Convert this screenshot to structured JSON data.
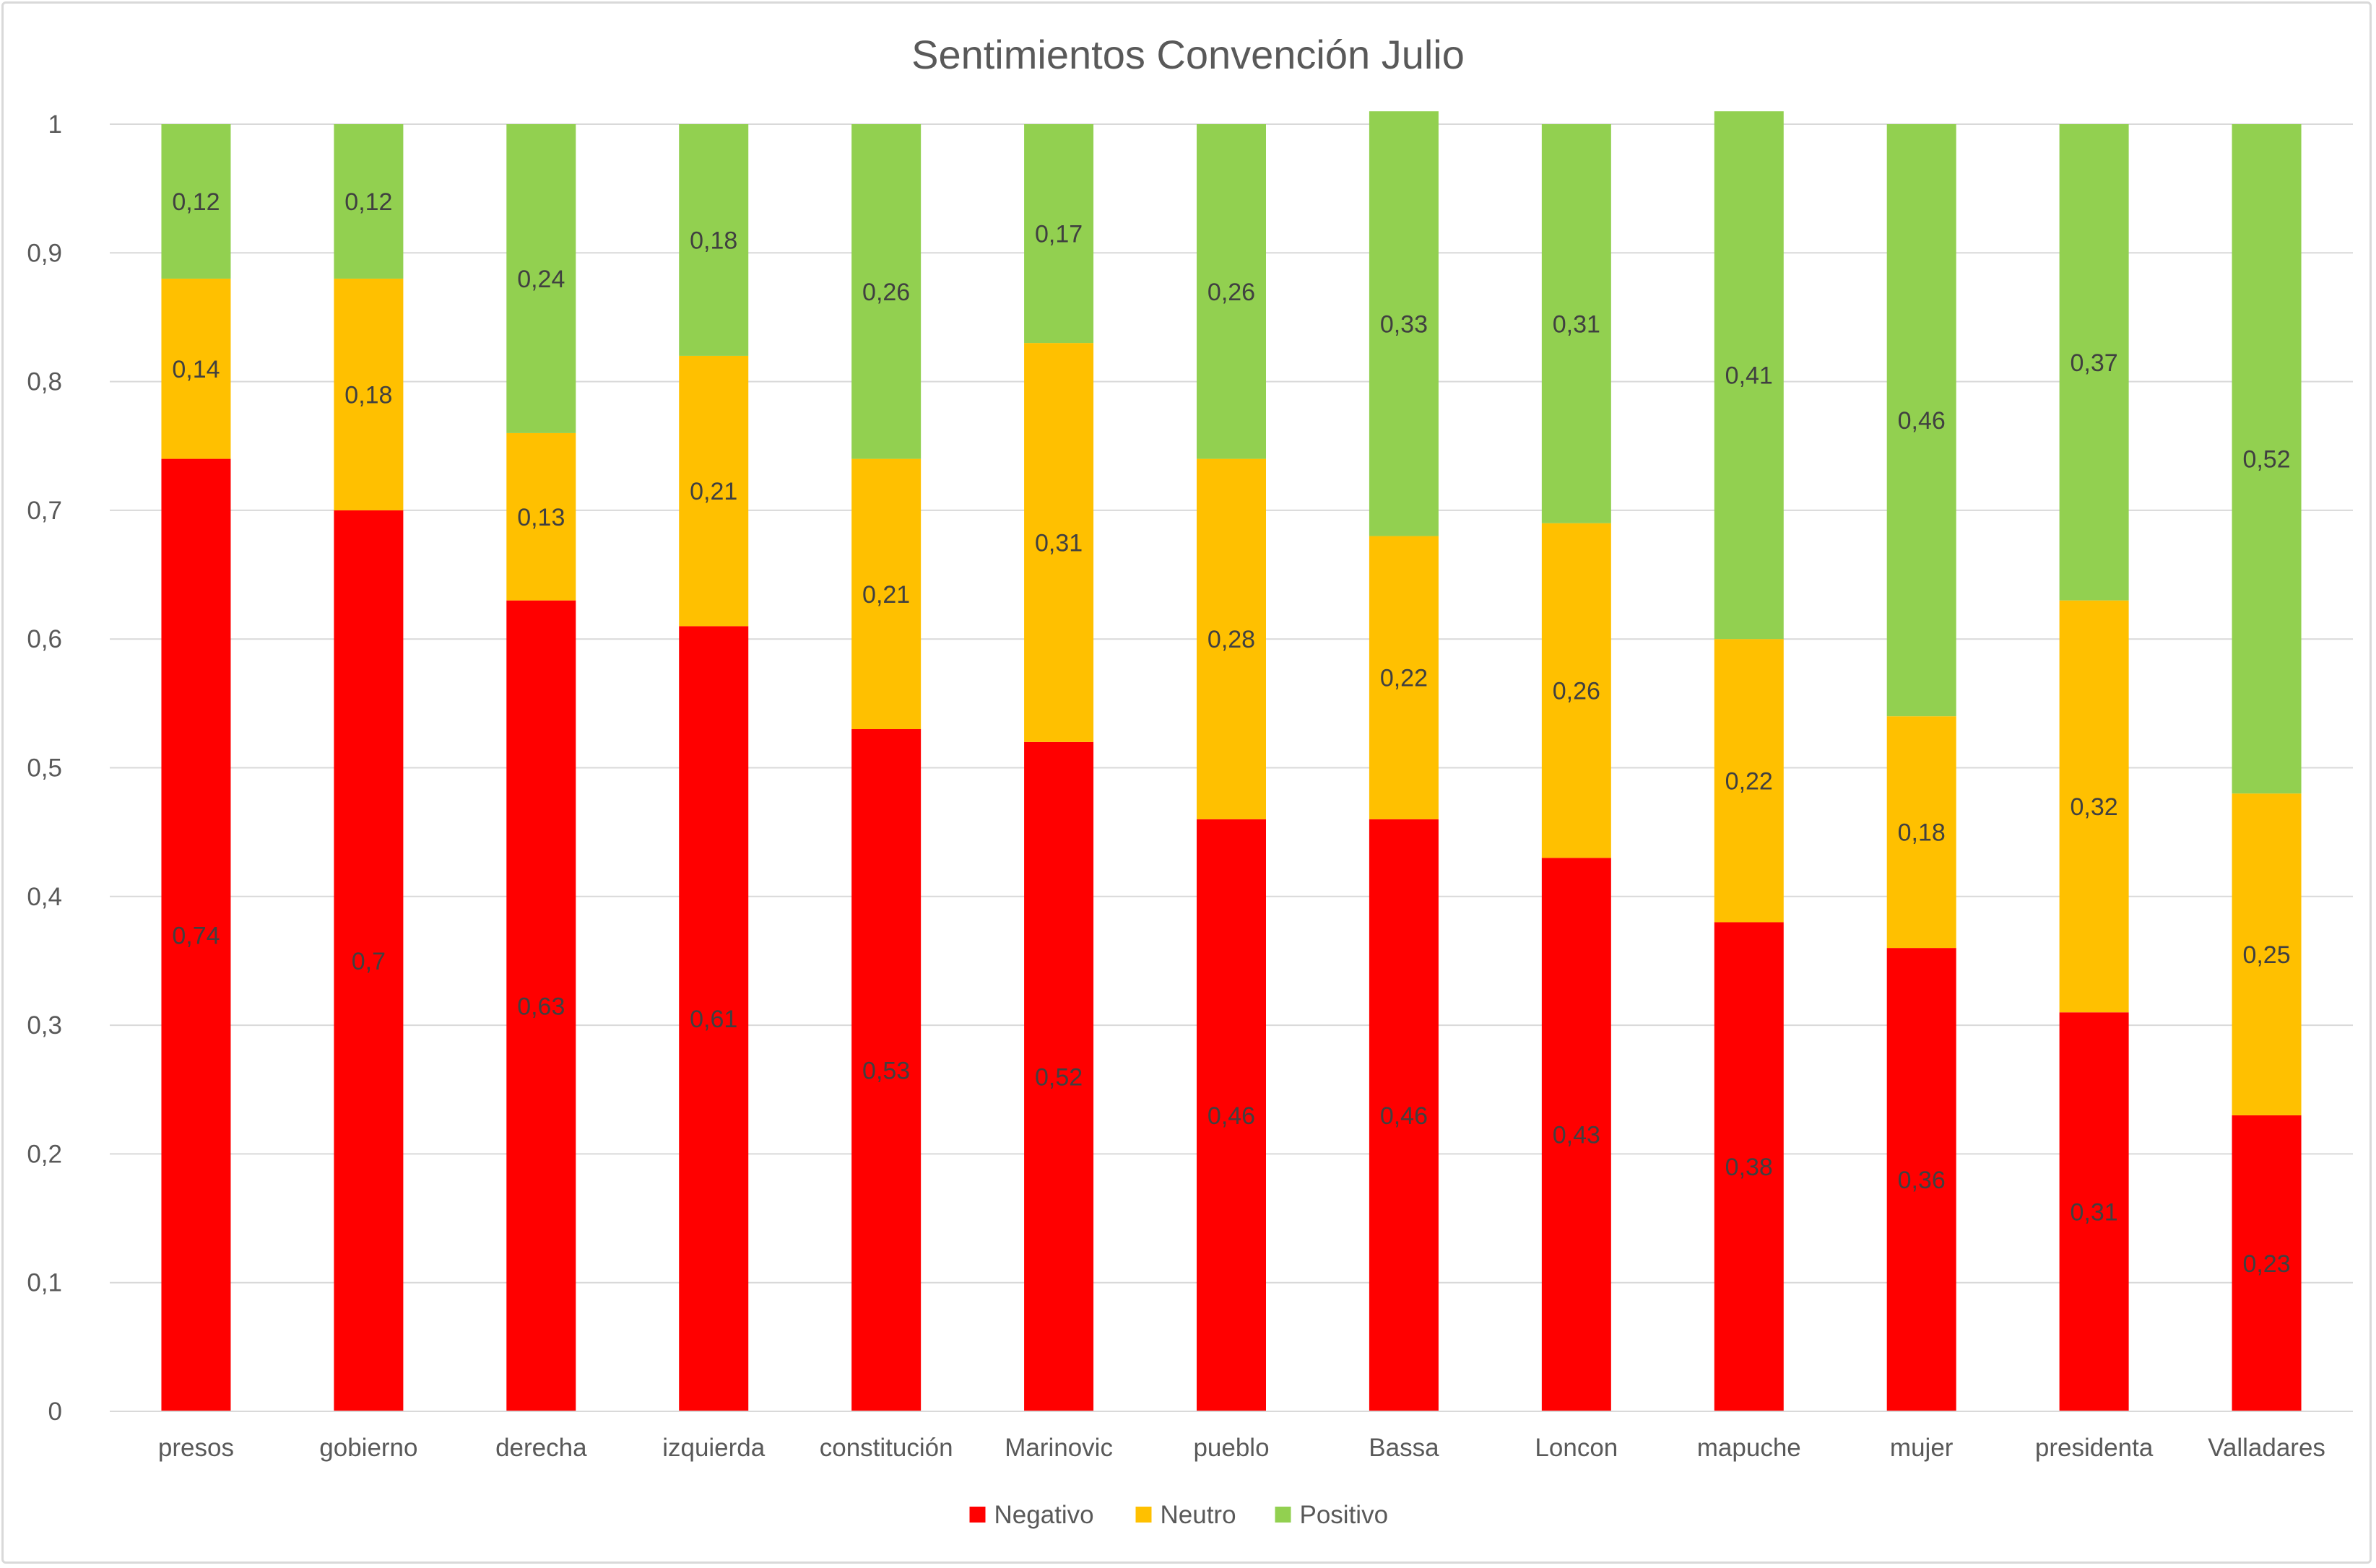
{
  "chart_data": {
    "type": "bar",
    "stacked": true,
    "title": "Sentimientos Convención Julio",
    "xlabel": "",
    "ylabel": "",
    "ylim": [
      0,
      1
    ],
    "yticks": [
      "0",
      "0,1",
      "0,2",
      "0,3",
      "0,4",
      "0,5",
      "0,6",
      "0,7",
      "0,8",
      "0,9",
      "1"
    ],
    "grid": true,
    "legend_position": "bottom",
    "categories": [
      "presos",
      "gobierno",
      "derecha",
      "izquierda",
      "constitución",
      "Marinovic",
      "pueblo",
      "Bassa",
      "Loncon",
      "mapuche",
      "mujer",
      "presidenta",
      "Valladares"
    ],
    "series": [
      {
        "name": "Negativo",
        "color": "#ff0000",
        "values": [
          0.74,
          0.7,
          0.63,
          0.61,
          0.53,
          0.52,
          0.46,
          0.46,
          0.43,
          0.38,
          0.36,
          0.31,
          0.23
        ],
        "labels": [
          "0,74",
          "0,7",
          "0,63",
          "0,61",
          "0,53",
          "0,52",
          "0,46",
          "0,46",
          "0,43",
          "0,38",
          "0,36",
          "0,31",
          "0,23"
        ]
      },
      {
        "name": "Neutro",
        "color": "#ffc000",
        "values": [
          0.14,
          0.18,
          0.13,
          0.21,
          0.21,
          0.31,
          0.28,
          0.22,
          0.26,
          0.22,
          0.18,
          0.32,
          0.25
        ],
        "labels": [
          "0,14",
          "0,18",
          "0,13",
          "0,21",
          "0,21",
          "0,31",
          "0,28",
          "0,22",
          "0,26",
          "0,22",
          "0,18",
          "0,32",
          "0,25"
        ]
      },
      {
        "name": "Positivo",
        "color": "#92d050",
        "values": [
          0.12,
          0.12,
          0.24,
          0.18,
          0.26,
          0.17,
          0.26,
          0.33,
          0.31,
          0.41,
          0.46,
          0.37,
          0.52
        ],
        "labels": [
          "0,12",
          "0,12",
          "0,24",
          "0,18",
          "0,26",
          "0,17",
          "0,26",
          "0,33",
          "0,31",
          "0,41",
          "0,46",
          "0,37",
          "0,52"
        ]
      }
    ]
  }
}
